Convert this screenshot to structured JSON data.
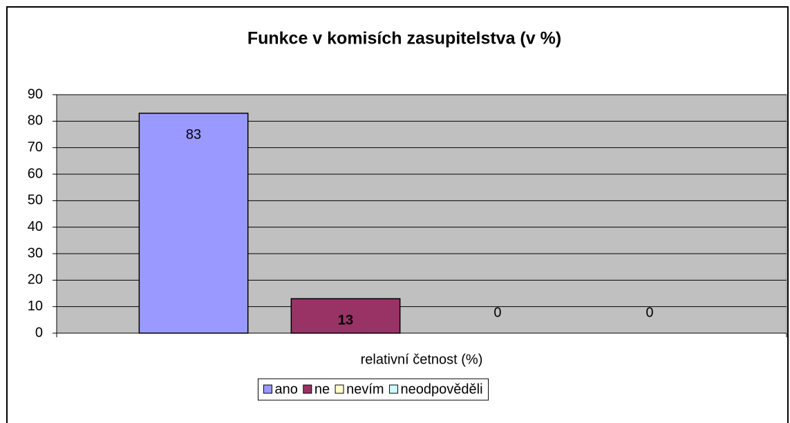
{
  "chart_data": {
    "type": "bar",
    "title": "Funkce v komisích zasupitelstva (v %)",
    "categories": [
      "relativní četnost (%)"
    ],
    "series": [
      {
        "name": "ano",
        "color": "#9999ff",
        "label_color": "#000000",
        "values": [
          83
        ]
      },
      {
        "name": "ne",
        "color": "#993366",
        "label_color": "#ffffff",
        "values": [
          13
        ]
      },
      {
        "name": "nevím",
        "color": "#ffffcc",
        "label_color": "#000000",
        "values": [
          0
        ]
      },
      {
        "name": "neodpověděli",
        "color": "#ccffff",
        "label_color": "#000000",
        "values": [
          0
        ]
      }
    ],
    "ylim": [
      0,
      90
    ],
    "yticks": [
      0,
      10,
      20,
      30,
      40,
      50,
      60,
      70,
      80,
      90
    ],
    "grid": true,
    "plot_background": "#c0c0c0",
    "legend": "bottom"
  }
}
